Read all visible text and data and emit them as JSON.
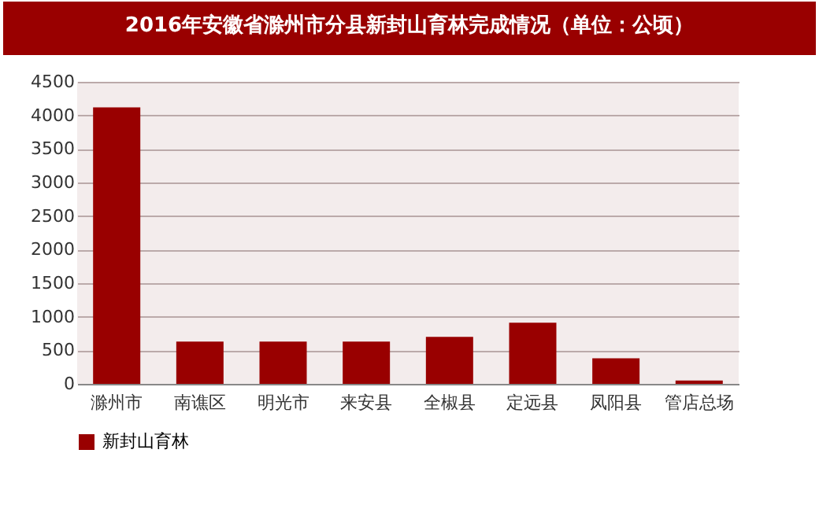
{
  "chart_data": {
    "type": "bar",
    "title": "2016年安徽省滁州市分县新封山育林完成情况（单位：公顷）",
    "categories": [
      "滁州市",
      "南谯区",
      "明光市",
      "来安县",
      "全椒县",
      "定远县",
      "凤阳县",
      "管店总场"
    ],
    "series": [
      {
        "name": "新封山育林",
        "color": "#990000",
        "values": [
          4120,
          630,
          630,
          630,
          700,
          910,
          380,
          50
        ]
      }
    ],
    "ylim": [
      0,
      4500
    ],
    "yticks": [
      0,
      500,
      1000,
      1500,
      2000,
      2500,
      3000,
      3500,
      4000,
      4500
    ],
    "grid": "y",
    "legend": "bottom"
  }
}
